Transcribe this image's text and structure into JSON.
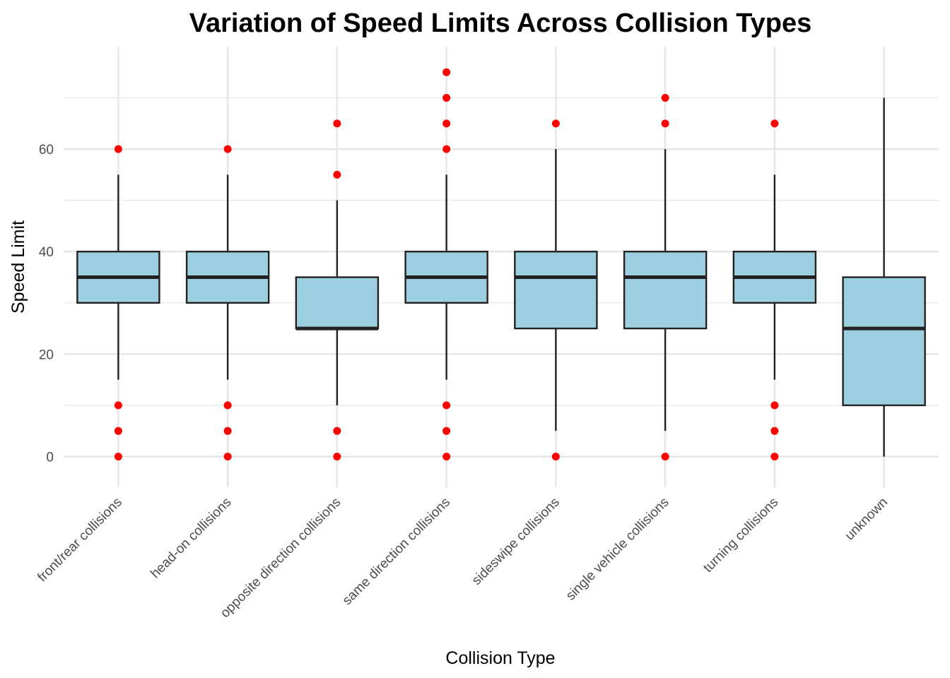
{
  "chart_data": {
    "type": "boxplot",
    "title": "Variation of Speed Limits Across Collision Types",
    "xlabel": "Collision Type",
    "ylabel": "Speed Limit",
    "ylim": [
      -6,
      80
    ],
    "yticks": [
      0,
      20,
      40,
      60
    ],
    "grid": true,
    "legend": "none",
    "colors": {
      "box_fill": "#9ecfe0",
      "box_stroke": "#222222",
      "outlier": "#ff0000",
      "grid": "#e6e6e6"
    },
    "categories": [
      "front/rear collisions",
      "head-on collisions",
      "opposite direction collisions",
      "same direction collisions",
      "sideswipe collisions",
      "single vehicle collisions",
      "turning collisions",
      "unknown"
    ],
    "boxes": [
      {
        "q1": 30,
        "median": 35,
        "q3": 40,
        "whisker_low": 15,
        "whisker_high": 55,
        "outliers": [
          0,
          5,
          10,
          60
        ]
      },
      {
        "q1": 30,
        "median": 35,
        "q3": 40,
        "whisker_low": 15,
        "whisker_high": 55,
        "outliers": [
          0,
          5,
          10,
          60
        ]
      },
      {
        "q1": 25,
        "median": 25,
        "q3": 35,
        "whisker_low": 10,
        "whisker_high": 50,
        "outliers": [
          0,
          5,
          55,
          65
        ]
      },
      {
        "q1": 30,
        "median": 35,
        "q3": 40,
        "whisker_low": 15,
        "whisker_high": 55,
        "outliers": [
          0,
          5,
          10,
          60,
          65,
          70,
          75
        ]
      },
      {
        "q1": 25,
        "median": 35,
        "q3": 40,
        "whisker_low": 5,
        "whisker_high": 60,
        "outliers": [
          0,
          65
        ]
      },
      {
        "q1": 25,
        "median": 35,
        "q3": 40,
        "whisker_low": 5,
        "whisker_high": 60,
        "outliers": [
          0,
          65,
          70
        ]
      },
      {
        "q1": 30,
        "median": 35,
        "q3": 40,
        "whisker_low": 15,
        "whisker_high": 55,
        "outliers": [
          0,
          5,
          10,
          65
        ]
      },
      {
        "q1": 10,
        "median": 25,
        "q3": 35,
        "whisker_low": 0,
        "whisker_high": 70,
        "outliers": []
      }
    ]
  }
}
